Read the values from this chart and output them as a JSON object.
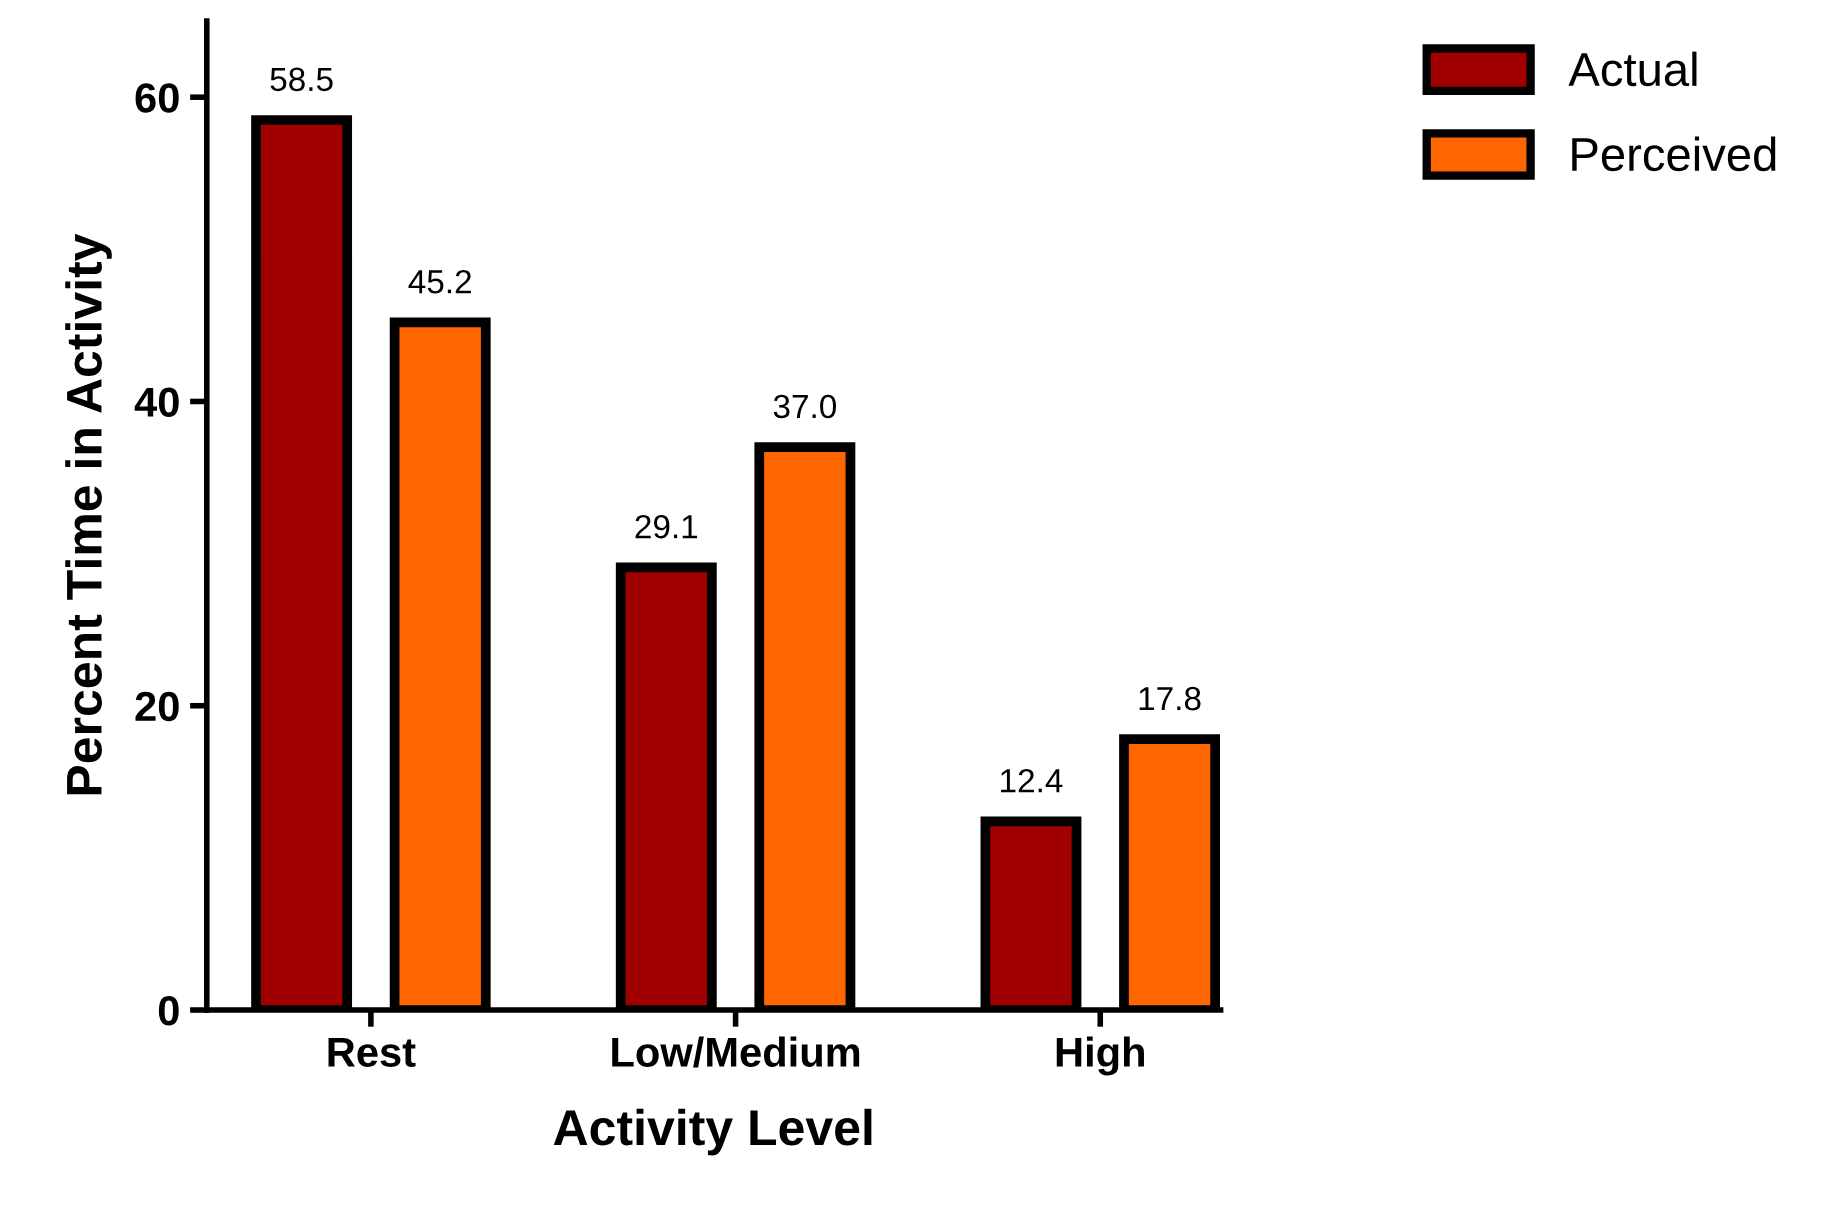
{
  "chart_data": {
    "type": "bar",
    "xlabel": "Activity Level",
    "ylabel": "Percent Time in Activity",
    "categories": [
      "Rest",
      "Low/Medium",
      "High"
    ],
    "series": [
      {
        "name": "Actual",
        "color": "#a00000",
        "values": [
          58.5,
          29.1,
          12.4
        ],
        "value_labels": [
          "58.5",
          "29.1",
          "12.4"
        ]
      },
      {
        "name": "Perceived",
        "color": "#ff6600",
        "values": [
          45.2,
          37.0,
          17.8
        ],
        "value_labels": [
          "45.2",
          "37.0",
          "17.8"
        ]
      }
    ],
    "ylim": [
      0,
      65
    ],
    "yticks": [
      0,
      20,
      40,
      60
    ],
    "grid": false,
    "legend": "top right"
  }
}
